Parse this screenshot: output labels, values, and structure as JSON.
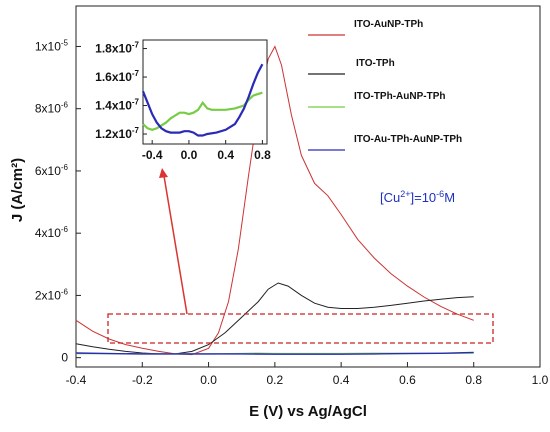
{
  "chart_data": [
    {
      "type": "line",
      "title": "",
      "xlabel": "E (V) vs Ag/AgCl",
      "ylabel": "J (A/cm²)",
      "xlim": [
        -0.4,
        1.0
      ],
      "ylim": [
        -3e-07,
        1.13e-05
      ],
      "x_ticks": [
        "-0.4",
        "-0.2",
        "0.0",
        "0.2",
        "0.4",
        "0.6",
        "0.8",
        "1.0"
      ],
      "y_ticks": [
        {
          "value": 0,
          "base": "0",
          "exp": ""
        },
        {
          "value": 2e-06,
          "base": "2x10",
          "exp": "-6"
        },
        {
          "value": 4e-06,
          "base": "4x10",
          "exp": "-6"
        },
        {
          "value": 6e-06,
          "base": "6x10",
          "exp": "-6"
        },
        {
          "value": 8e-06,
          "base": "8x10",
          "exp": "-6"
        },
        {
          "value": 1e-05,
          "base": "1x10",
          "exp": "-5"
        }
      ],
      "annotation": {
        "prefix": "[Cu",
        "sup": "2+",
        "mid": "]=10",
        "exp": "-6",
        "suffix": "M"
      },
      "legend_position": "top-right",
      "series": [
        {
          "name": "ITO-AuNP-TPh",
          "color": "#cc3333",
          "x": [
            -0.4,
            -0.35,
            -0.3,
            -0.25,
            -0.2,
            -0.15,
            -0.1,
            -0.05,
            0.0,
            0.03,
            0.06,
            0.09,
            0.12,
            0.15,
            0.18,
            0.2,
            0.22,
            0.25,
            0.28,
            0.32,
            0.36,
            0.4,
            0.45,
            0.5,
            0.55,
            0.6,
            0.65,
            0.7,
            0.75,
            0.8
          ],
          "y": [
            1.2e-06,
            8.5e-07,
            6e-07,
            4.2e-07,
            3e-07,
            2e-07,
            1.2e-07,
            1e-07,
            3e-07,
            8e-07,
            1.8e-06,
            3.5e-06,
            5.8e-06,
            8e-06,
            9.6e-06,
            1e-05,
            9.4e-06,
            7.8e-06,
            6.5e-06,
            5.6e-06,
            5.2e-06,
            4.6e-06,
            3.8e-06,
            3.2e-06,
            2.7e-06,
            2.3e-06,
            1.95e-06,
            1.65e-06,
            1.4e-06,
            1.2e-06
          ]
        },
        {
          "name": "ITO-TPh",
          "color": "#222222",
          "x": [
            -0.4,
            -0.35,
            -0.3,
            -0.25,
            -0.2,
            -0.15,
            -0.1,
            -0.05,
            0.0,
            0.05,
            0.1,
            0.15,
            0.18,
            0.21,
            0.24,
            0.28,
            0.32,
            0.36,
            0.4,
            0.45,
            0.5,
            0.55,
            0.6,
            0.65,
            0.7,
            0.75,
            0.8
          ],
          "y": [
            4.5e-07,
            3.5e-07,
            2.7e-07,
            2e-07,
            1.5e-07,
            1.2e-07,
            1.2e-07,
            2e-07,
            4.2e-07,
            8e-07,
            1.3e-06,
            1.8e-06,
            2.2e-06,
            2.4e-06,
            2.3e-06,
            2e-06,
            1.75e-06,
            1.62e-06,
            1.58e-06,
            1.58e-06,
            1.62e-06,
            1.68e-06,
            1.75e-06,
            1.82e-06,
            1.88e-06,
            1.93e-06,
            1.96e-06
          ]
        },
        {
          "name": "ITO-TPh-AuNP-TPh",
          "color": "#77cc44",
          "x": [
            -0.4,
            -0.3,
            -0.2,
            -0.1,
            0.0,
            0.1,
            0.15,
            0.2,
            0.3,
            0.4,
            0.5,
            0.6,
            0.7,
            0.8
          ],
          "y": [
            1.3e-07,
            1.3e-07,
            1.2e-07,
            1.2e-07,
            1.2e-07,
            1.3e-07,
            1.4e-07,
            1.3e-07,
            1.3e-07,
            1.3e-07,
            1.4e-07,
            1.4e-07,
            1.4e-07,
            1.5e-07
          ]
        },
        {
          "name": "ITO-Au-TPh-AuNP-TPh",
          "color": "#2a2ab8",
          "x": [
            -0.4,
            -0.3,
            -0.2,
            -0.1,
            0.0,
            0.1,
            0.2,
            0.3,
            0.4,
            0.5,
            0.6,
            0.7,
            0.8
          ],
          "y": [
            1.5e-07,
            1.3e-07,
            1.2e-07,
            1.2e-07,
            1.2e-07,
            1.2e-07,
            1.1e-07,
            1.1e-07,
            1.1e-07,
            1.2e-07,
            1.3e-07,
            1.4e-07,
            1.7e-07
          ]
        }
      ]
    },
    {
      "type": "line",
      "title": "",
      "xlabel": "",
      "ylabel": "",
      "xlim": [
        -0.5,
        0.85
      ],
      "ylim": [
        1.13e-07,
        1.86e-07
      ],
      "x_ticks": [
        "-0.4",
        "0.0",
        "0.4",
        "0.8"
      ],
      "y_ticks": [
        {
          "value": 1.2e-07,
          "base": "1.2x10",
          "exp": "-7"
        },
        {
          "value": 1.4e-07,
          "base": "1.4x10",
          "exp": "-7"
        },
        {
          "value": 1.6e-07,
          "base": "1.6x10",
          "exp": "-7"
        },
        {
          "value": 1.8e-07,
          "base": "1.8x10",
          "exp": "-7"
        }
      ],
      "series": [
        {
          "name": "",
          "color": "#77cc44",
          "x": [
            -0.5,
            -0.45,
            -0.4,
            -0.35,
            -0.3,
            -0.25,
            -0.2,
            -0.15,
            -0.1,
            -0.05,
            0.0,
            0.05,
            0.1,
            0.15,
            0.2,
            0.25,
            0.3,
            0.4,
            0.5,
            0.6,
            0.65,
            0.7,
            0.75,
            0.8
          ],
          "y": [
            1.27e-07,
            1.24e-07,
            1.23e-07,
            1.24e-07,
            1.26e-07,
            1.28e-07,
            1.31e-07,
            1.33e-07,
            1.35e-07,
            1.35e-07,
            1.34e-07,
            1.35e-07,
            1.37e-07,
            1.42e-07,
            1.38e-07,
            1.37e-07,
            1.37e-07,
            1.37e-07,
            1.38e-07,
            1.4e-07,
            1.44e-07,
            1.47e-07,
            1.48e-07,
            1.49e-07
          ]
        },
        {
          "name": "",
          "color": "#2a2ab8",
          "x": [
            -0.5,
            -0.45,
            -0.4,
            -0.35,
            -0.3,
            -0.25,
            -0.2,
            -0.1,
            -0.05,
            0.0,
            0.05,
            0.1,
            0.15,
            0.2,
            0.3,
            0.4,
            0.5,
            0.55,
            0.6,
            0.65,
            0.7,
            0.75,
            0.8
          ],
          "y": [
            1.5e-07,
            1.42e-07,
            1.34e-07,
            1.28e-07,
            1.24e-07,
            1.22e-07,
            1.21e-07,
            1.21e-07,
            1.22e-07,
            1.22e-07,
            1.21e-07,
            1.19e-07,
            1.19e-07,
            1.2e-07,
            1.21e-07,
            1.23e-07,
            1.27e-07,
            1.32e-07,
            1.38e-07,
            1.46e-07,
            1.55e-07,
            1.63e-07,
            1.69e-07
          ]
        }
      ]
    }
  ]
}
